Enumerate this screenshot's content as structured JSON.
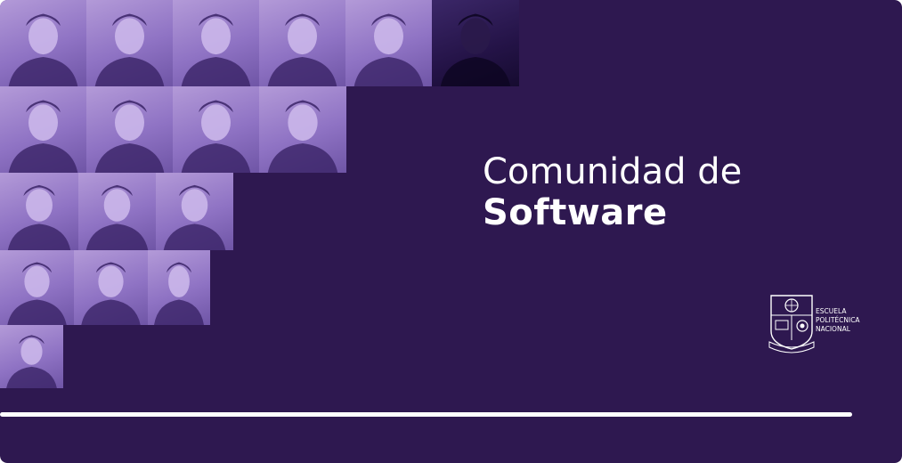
{
  "colors": {
    "background": "#2e1850",
    "accent": "#ffffff",
    "photo_tint": "#9b80cc"
  },
  "title": {
    "line1": "Comunidad de",
    "line2": "Software"
  },
  "logo": {
    "icon": "escuela-politecnica-nacional-crest-icon",
    "line1": "ESCUELA",
    "line2": "POLITÉCNICA",
    "line3": "NACIONAL"
  },
  "photos": [
    {
      "name": "member-photo-1"
    },
    {
      "name": "member-photo-2"
    },
    {
      "name": "member-photo-3"
    },
    {
      "name": "member-photo-4"
    },
    {
      "name": "member-photo-5"
    },
    {
      "name": "member-photo-6"
    },
    {
      "name": "member-photo-7"
    },
    {
      "name": "member-photo-8"
    },
    {
      "name": "member-photo-9"
    },
    {
      "name": "member-photo-10"
    },
    {
      "name": "member-photo-11"
    },
    {
      "name": "member-photo-12"
    },
    {
      "name": "member-photo-13"
    },
    {
      "name": "member-photo-14"
    },
    {
      "name": "member-photo-15"
    },
    {
      "name": "member-photo-16"
    },
    {
      "name": "member-photo-17"
    }
  ]
}
